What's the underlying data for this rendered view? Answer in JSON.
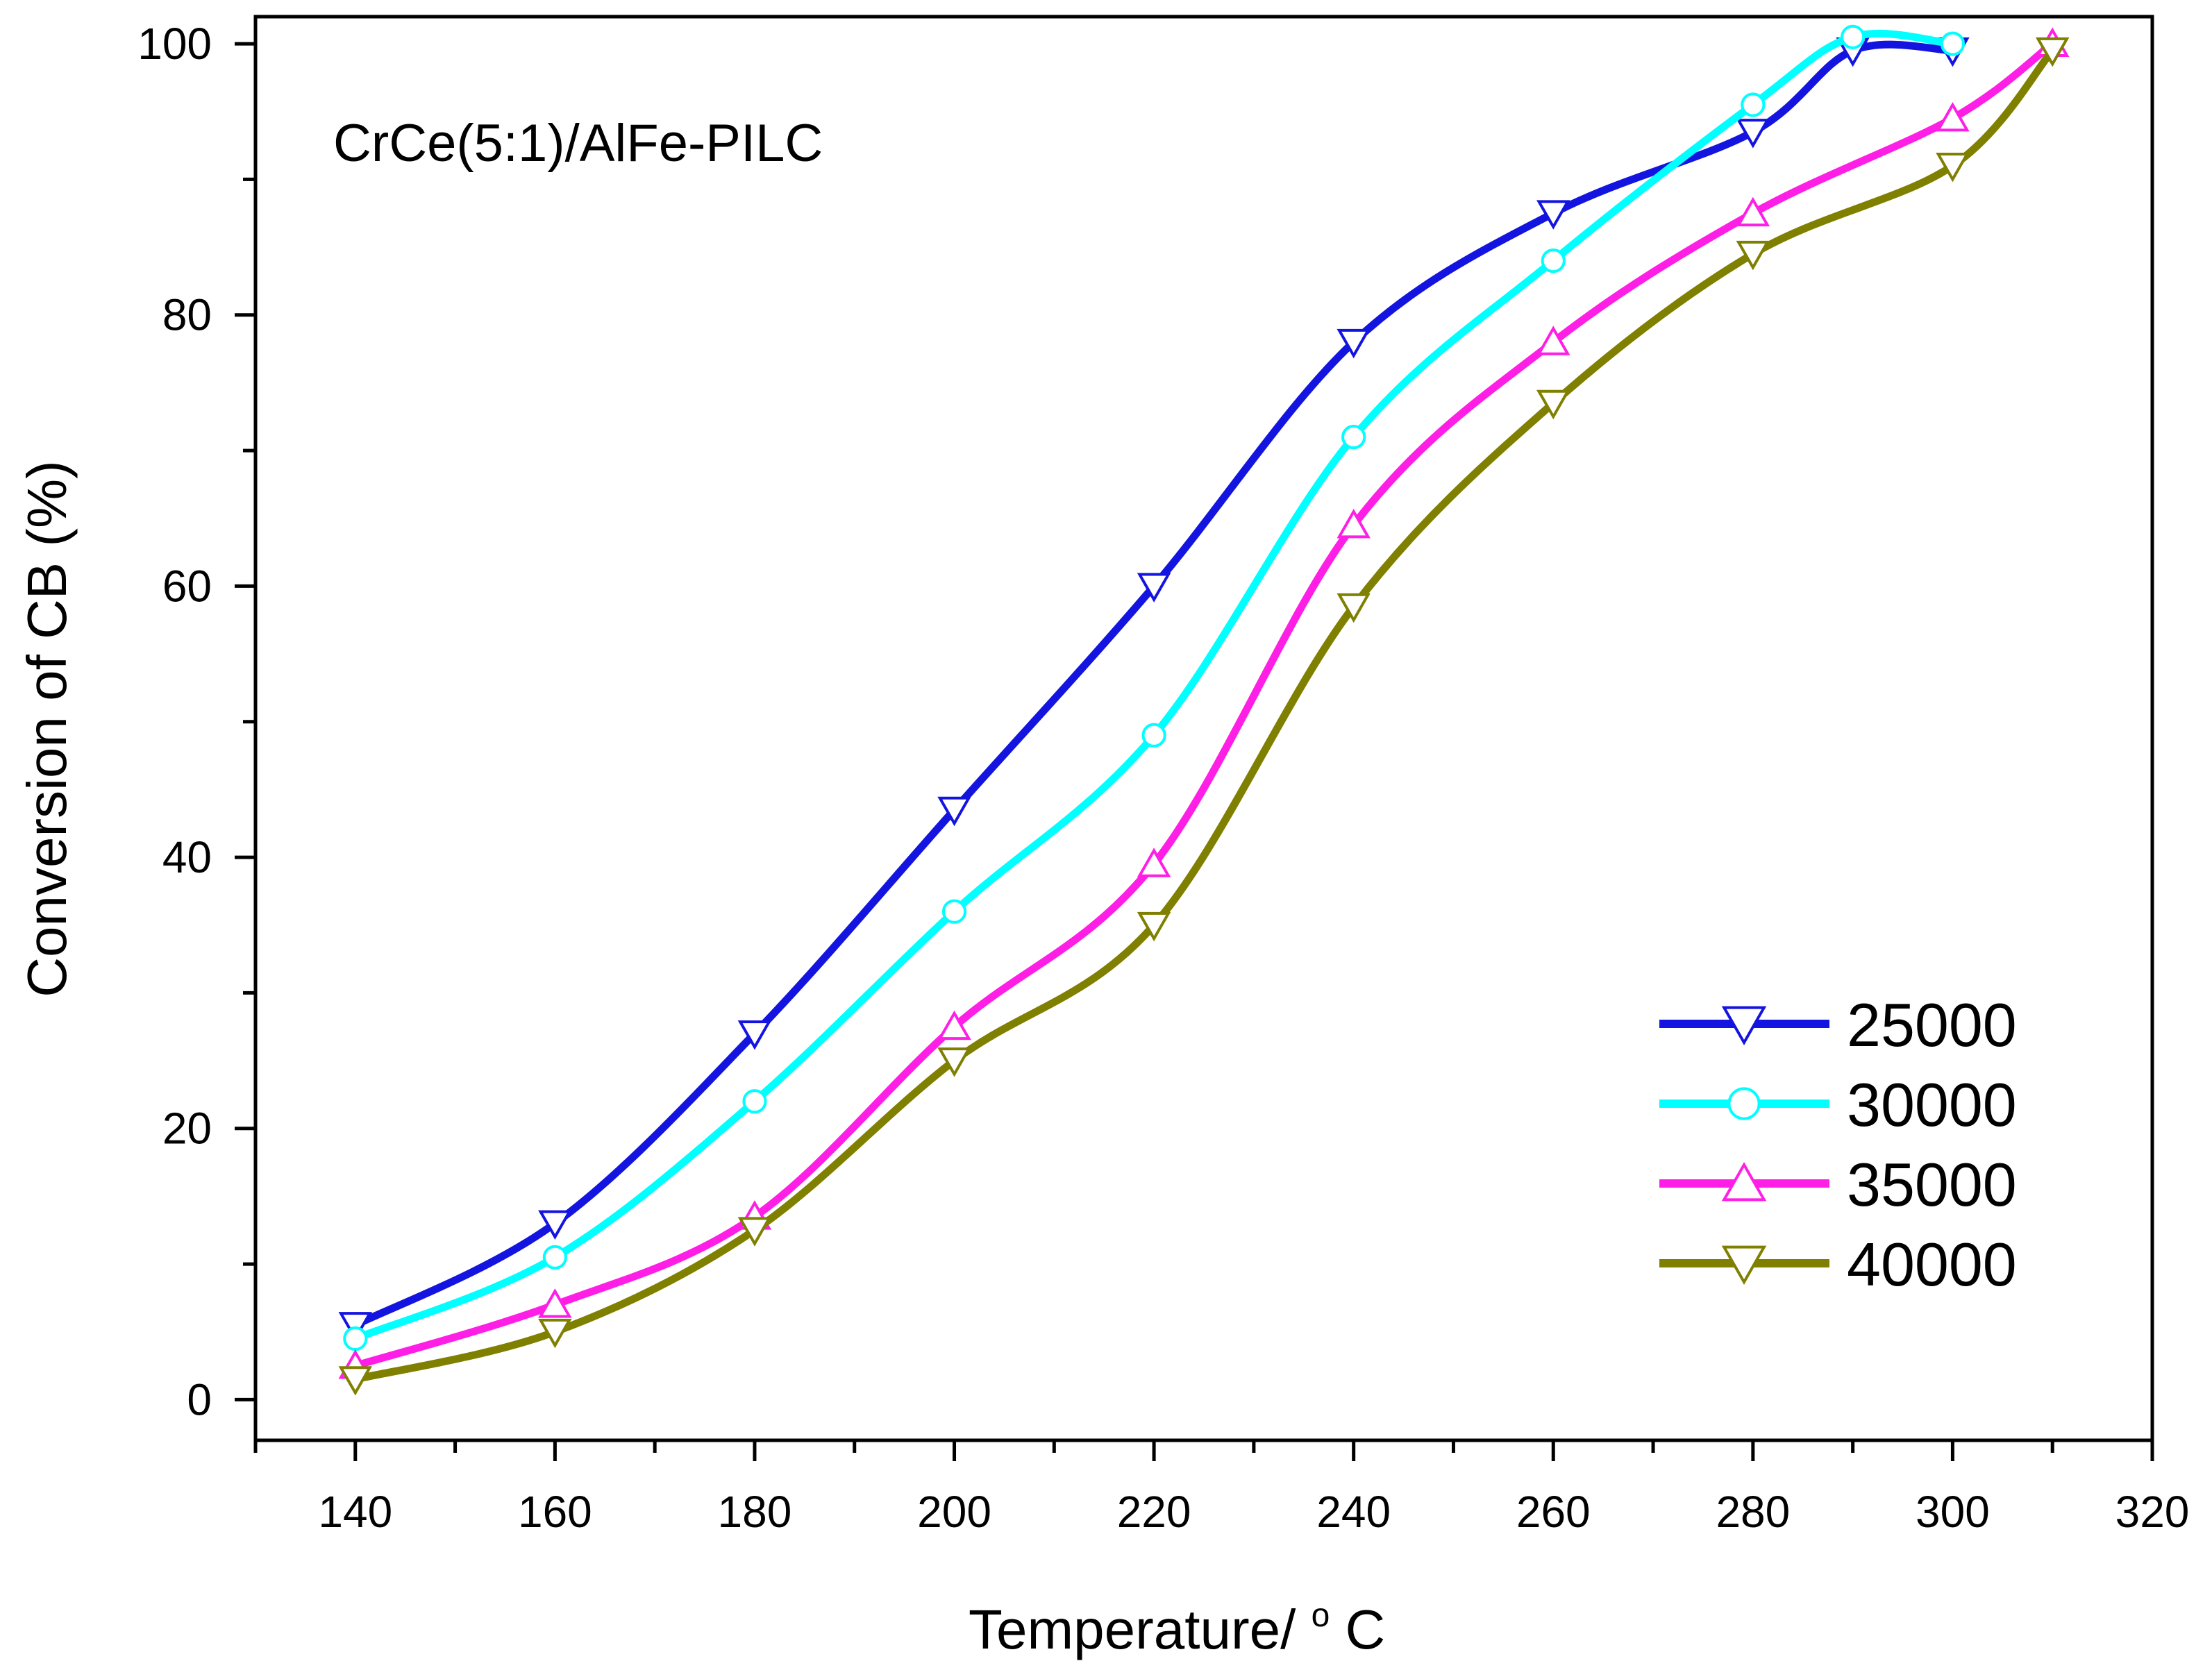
{
  "chart_data": {
    "type": "line",
    "title": "",
    "annotation": "CrCe(5:1)/AlFe-PILC",
    "xlabel": "Temperature/",
    "xlabel_superscript": "o",
    "xlabel_unit": "C",
    "ylabel": "Conversion of CB (%)",
    "xlim": [
      130,
      320
    ],
    "ylim": [
      -3,
      102
    ],
    "x_ticks": [
      140,
      160,
      180,
      200,
      220,
      240,
      260,
      280,
      300,
      320
    ],
    "y_ticks": [
      0,
      20,
      40,
      60,
      80,
      100
    ],
    "grid": false,
    "legend_position": "bottom-right",
    "series": [
      {
        "name": "25000",
        "color": "#1414e0",
        "marker": "triangle-down",
        "x": [
          140,
          160,
          180,
          200,
          220,
          240,
          260,
          280,
          290,
          300
        ],
        "values": [
          5.5,
          13,
          27,
          43.5,
          60,
          78,
          87.5,
          93.5,
          99.5,
          99.5
        ]
      },
      {
        "name": "30000",
        "color": "#00ffff",
        "marker": "circle",
        "x": [
          140,
          160,
          180,
          200,
          220,
          240,
          260,
          280,
          290,
          300
        ],
        "values": [
          4.5,
          10.5,
          22,
          36,
          49,
          71,
          84,
          95.5,
          100.5,
          100
        ]
      },
      {
        "name": "35000",
        "color": "#ff1ee6",
        "marker": "triangle-up",
        "x": [
          140,
          160,
          180,
          200,
          220,
          240,
          260,
          280,
          300,
          310
        ],
        "values": [
          2.5,
          7,
          13.5,
          27.5,
          39.5,
          64.5,
          78,
          87.5,
          94.5,
          100
        ]
      },
      {
        "name": "40000",
        "color": "#7f7f00",
        "marker": "triangle-down",
        "x": [
          140,
          160,
          180,
          200,
          220,
          240,
          260,
          280,
          300,
          310
        ],
        "values": [
          1.5,
          5,
          12.5,
          25,
          35,
          58.5,
          73.5,
          84.5,
          91,
          99.5
        ]
      }
    ]
  }
}
